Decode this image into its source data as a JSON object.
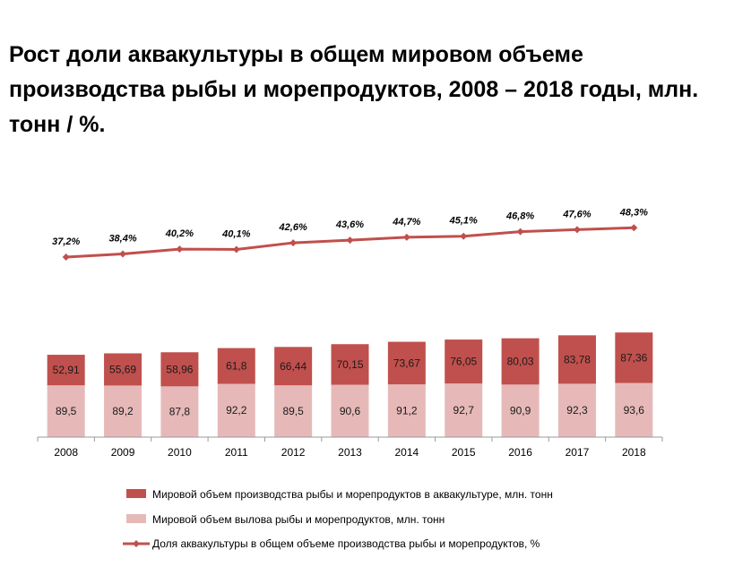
{
  "title": "Рост доли аквакультуры в общем мировом объеме производства рыбы и морепродуктов, 2008 – 2018 годы, млн. тонн / %.",
  "colors": {
    "aquaculture": "#c0504d",
    "catch": "#e6b9b8",
    "share_line": "#c0504d"
  },
  "chart_data": {
    "type": "bar",
    "stacked": true,
    "categories": [
      "2008",
      "2009",
      "2010",
      "2011",
      "2012",
      "2013",
      "2014",
      "2015",
      "2016",
      "2017",
      "2018"
    ],
    "series": [
      {
        "name": "Мировой объем вылова рыбы и морепродуктов, млн. тонн",
        "kind": "bar",
        "values": [
          89.5,
          89.2,
          87.8,
          92.2,
          89.5,
          90.6,
          91.2,
          92.7,
          90.9,
          92.3,
          93.6
        ],
        "labels": [
          "89,5",
          "89,2",
          "87,8",
          "92,2",
          "89,5",
          "90,6",
          "91,2",
          "92,7",
          "90,9",
          "92,3",
          "93,6"
        ]
      },
      {
        "name": "Мировой объем производства рыбы и морепродуктов в аквакультуре, млн. тонн",
        "kind": "bar",
        "values": [
          52.91,
          55.69,
          58.96,
          61.8,
          66.44,
          70.15,
          73.67,
          76.05,
          80.03,
          83.78,
          87.36
        ],
        "labels": [
          "52,91",
          "55,69",
          "58,96",
          "61,8",
          "66,44",
          "70,15",
          "73,67",
          "76,05",
          "80,03",
          "83,78",
          "87,36"
        ]
      },
      {
        "name": "Доля аквакультуры в общем объеме производства рыбы и морепродуктов, %",
        "kind": "line",
        "values": [
          37.2,
          38.4,
          40.2,
          40.1,
          42.6,
          43.6,
          44.7,
          45.1,
          46.8,
          47.6,
          48.3
        ],
        "labels": [
          "37,2%",
          "38,4%",
          "40,2%",
          "40,1%",
          "42,6%",
          "43,6%",
          "44,7%",
          "45,1%",
          "46,8%",
          "47,6%",
          "48,3%"
        ]
      }
    ],
    "grid": false,
    "legend_position": "bottom"
  }
}
